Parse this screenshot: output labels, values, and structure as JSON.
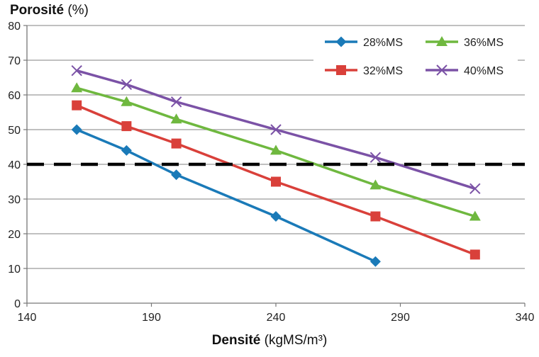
{
  "chart_data": {
    "type": "line",
    "ylabel_bold": "Porosité",
    "ylabel_unit": "(%)",
    "xlabel_bold": "Densité",
    "xlabel_unit": "(kgMS/m³)",
    "xlim": [
      140,
      340
    ],
    "ylim": [
      0,
      80
    ],
    "x_ticks": [
      "140",
      "190",
      "240",
      "290",
      "340"
    ],
    "y_ticks": [
      "0",
      "10",
      "20",
      "30",
      "40",
      "50",
      "60",
      "70",
      "80"
    ],
    "grid": true,
    "legend_position": "top-right",
    "reference_line": {
      "y": 40,
      "style": "dashed",
      "color": "#000000"
    },
    "series": [
      {
        "name": "28%MS",
        "color": "#1a7ab8",
        "marker": "diamond",
        "x": [
          160,
          180,
          200,
          240,
          280
        ],
        "y": [
          50,
          44,
          37,
          25,
          12
        ]
      },
      {
        "name": "32%MS",
        "color": "#d9403a",
        "marker": "square",
        "x": [
          160,
          180,
          200,
          240,
          280,
          320
        ],
        "y": [
          57,
          51,
          46,
          35,
          25,
          14
        ]
      },
      {
        "name": "36%MS",
        "color": "#6fb83f",
        "marker": "triangle",
        "x": [
          160,
          180,
          200,
          240,
          280,
          320
        ],
        "y": [
          62,
          58,
          53,
          44,
          34,
          25
        ]
      },
      {
        "name": "40%MS",
        "color": "#7b52a6",
        "marker": "x",
        "x": [
          160,
          180,
          200,
          240,
          280,
          320
        ],
        "y": [
          67,
          63,
          58,
          50,
          42,
          33
        ]
      }
    ]
  }
}
